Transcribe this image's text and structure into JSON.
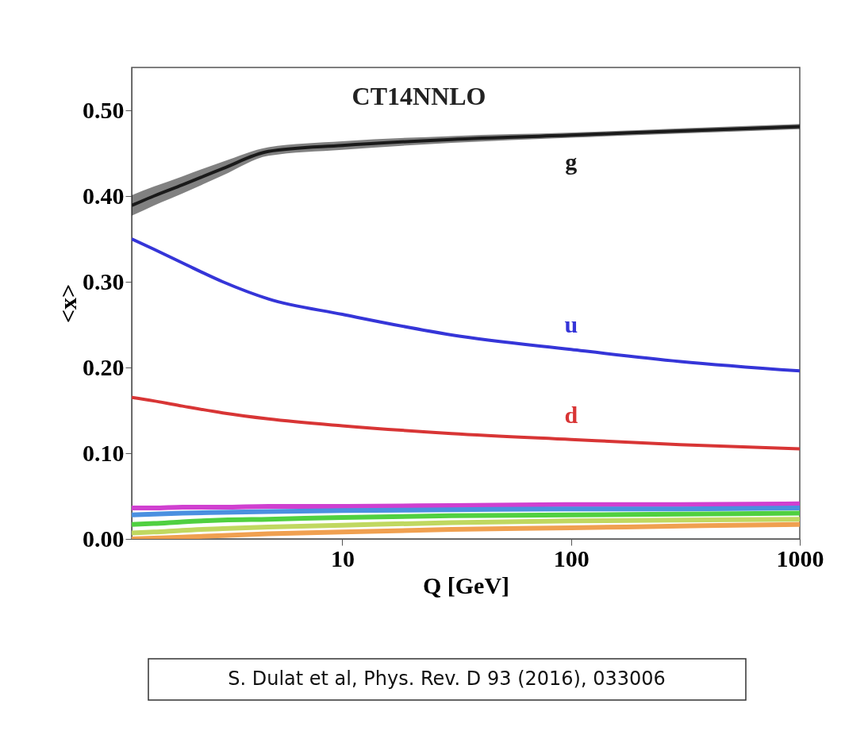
{
  "chart_data": {
    "type": "line",
    "title": "CT14NNLO",
    "xlabel": "Q [GeV]",
    "ylabel": "<x>",
    "log": "x",
    "xlim": [
      1.2,
      1000
    ],
    "xticks": [
      10,
      100,
      1000
    ],
    "ylim": [
      0,
      0.55
    ],
    "yticks": [
      {
        "value": 0,
        "label": "0.00"
      },
      {
        "value": 0.1,
        "label": "0.10"
      },
      {
        "value": 0.2,
        "label": "0.20"
      },
      {
        "value": 0.3,
        "label": "0.30"
      },
      {
        "value": 0.4,
        "label": "0.40"
      },
      {
        "value": 0.5,
        "label": "0.50"
      }
    ],
    "x": [
      1.2,
      1.5,
      2,
      3,
      4.75,
      10,
      30,
      100,
      300,
      1000
    ],
    "series": [
      {
        "name": "g",
        "color": "#1a1a1a",
        "values": [
          0.389,
          0.4,
          0.413,
          0.432,
          0.452,
          0.459,
          0.466,
          0.471,
          0.476,
          0.481
        ],
        "lower": [
          0.377,
          0.389,
          0.403,
          0.424,
          0.447,
          0.454,
          0.462,
          0.468,
          0.473,
          0.478
        ],
        "upper": [
          0.401,
          0.411,
          0.423,
          0.44,
          0.457,
          0.464,
          0.47,
          0.474,
          0.479,
          0.484
        ]
      },
      {
        "name": "u",
        "color": "#3535d8",
        "values": [
          0.35,
          0.338,
          0.322,
          0.3,
          0.28,
          0.262,
          0.238,
          0.221,
          0.207,
          0.196
        ]
      },
      {
        "name": "d",
        "color": "#d83535",
        "values": [
          0.165,
          0.161,
          0.155,
          0.147,
          0.14,
          0.132,
          0.123,
          0.116,
          0.11,
          0.105
        ]
      },
      {
        "color": "#d040d0",
        "values": [
          0.036,
          0.036,
          0.037,
          0.037,
          0.038,
          0.038,
          0.039,
          0.04,
          0.04,
          0.041
        ]
      },
      {
        "color": "#4a90e0",
        "values": [
          0.028,
          0.029,
          0.03,
          0.031,
          0.032,
          0.033,
          0.034,
          0.035,
          0.035,
          0.036
        ]
      },
      {
        "color": "#50d040",
        "values": [
          0.017,
          0.018,
          0.02,
          0.022,
          0.023,
          0.025,
          0.027,
          0.028,
          0.029,
          0.03
        ]
      },
      {
        "color": "#c0d860",
        "values": [
          0.007,
          0.008,
          0.01,
          0.012,
          0.014,
          0.016,
          0.019,
          0.021,
          0.022,
          0.023
        ]
      },
      {
        "color": "#f0a050",
        "values": [
          0.0,
          0.001,
          0.002,
          0.004,
          0.006,
          0.008,
          0.011,
          0.013,
          0.015,
          0.017
        ]
      }
    ],
    "grid": false,
    "annotations": [
      "S. Dulat et al, Phys. Rev. D 93  (2016), 033006"
    ]
  }
}
